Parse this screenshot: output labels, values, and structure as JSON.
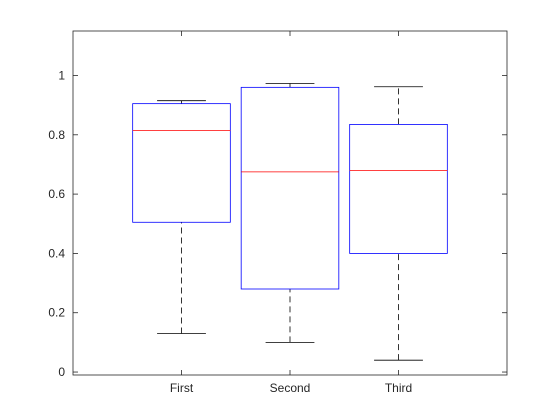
{
  "chart_data": {
    "type": "box",
    "title": "",
    "xlabel": "",
    "ylabel": "",
    "categories": [
      "First",
      "Second",
      "Third"
    ],
    "ylim": [
      -0.01,
      1.15
    ],
    "yticks": [
      0,
      0.2,
      0.4,
      0.6,
      0.8,
      1
    ],
    "ytick_labels": [
      "0",
      "0.2",
      "0.4",
      "0.6",
      "0.8",
      "1"
    ],
    "grid": false,
    "boxes": [
      {
        "name": "First",
        "whisker_low": 0.13,
        "q1": 0.505,
        "median": 0.815,
        "q3": 0.905,
        "whisker_high": 0.915
      },
      {
        "name": "Second",
        "whisker_low": 0.1,
        "q1": 0.28,
        "median": 0.675,
        "q3": 0.96,
        "whisker_high": 0.973
      },
      {
        "name": "Third",
        "whisker_low": 0.04,
        "q1": 0.4,
        "median": 0.68,
        "q3": 0.835,
        "whisker_high": 0.962
      }
    ],
    "colors": {
      "box": "#0000ff",
      "median": "#ff0000",
      "whisker": "#000000",
      "axis": "#262626"
    }
  }
}
